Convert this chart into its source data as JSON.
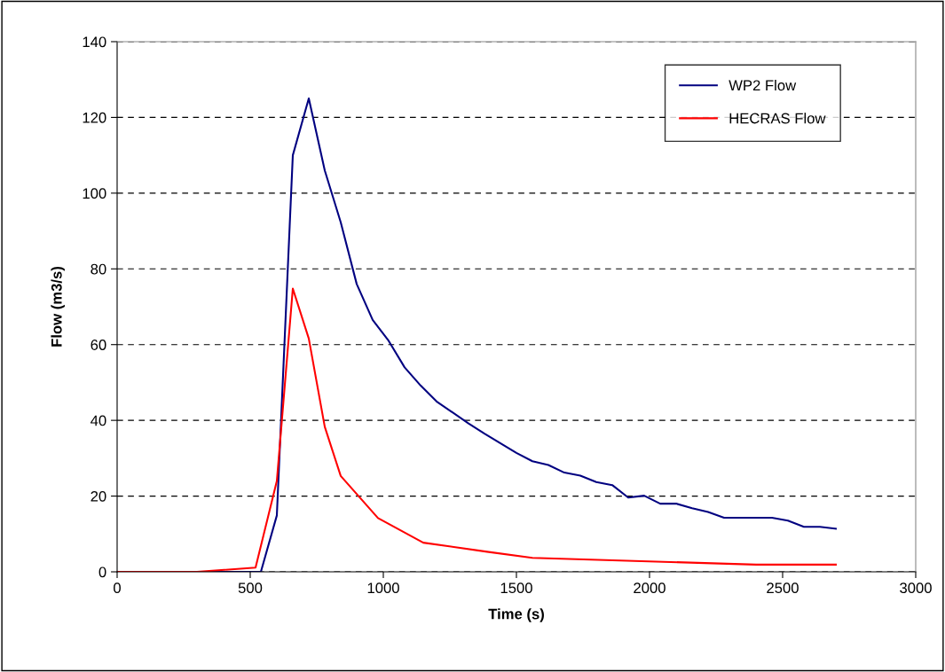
{
  "chart_data": {
    "type": "line",
    "xlabel": "Time (s)",
    "ylabel": "Flow (m3/s)",
    "xlim": [
      0,
      3000
    ],
    "xticks": [
      0,
      500,
      1000,
      1500,
      2000,
      2500,
      3000
    ],
    "ylim": [
      0,
      140
    ],
    "yticks": [
      0,
      20,
      40,
      60,
      80,
      100,
      120,
      140
    ],
    "grid": "y",
    "legend": "top right",
    "marker": "none",
    "line_style": "solid",
    "series": [
      {
        "name": "WP2 Flow",
        "color": "#000080",
        "x": [
          0,
          540,
          600,
          660,
          720,
          780,
          840,
          900,
          960,
          1020,
          1080,
          1140,
          1200,
          1320,
          1380,
          1500,
          1560,
          1620,
          1680,
          1740,
          1800,
          1860,
          1920,
          1980,
          2040,
          2100,
          2160,
          2220,
          2280,
          2460,
          2520,
          2580,
          2640,
          2700
        ],
        "values": [
          0,
          0,
          14.9,
          110,
          125,
          106,
          92.3,
          76,
          66.5,
          61,
          54,
          49.2,
          45,
          39.2,
          36.5,
          31.4,
          29.2,
          28.2,
          26.2,
          25.4,
          23.7,
          22.9,
          19.6,
          20.1,
          18,
          18,
          16.8,
          15.8,
          14.3,
          14.3,
          13.5,
          11.9,
          11.9,
          11.4
        ]
      },
      {
        "name": "HECRAS Flow",
        "color": "#ff0000",
        "x": [
          0,
          300,
          520,
          600,
          660,
          720,
          780,
          840,
          980,
          1150,
          1390,
          1560,
          2400,
          2700
        ],
        "values": [
          0,
          0,
          1.1,
          24,
          74.8,
          61.6,
          38.3,
          25.3,
          14.2,
          7.7,
          5.3,
          3.7,
          1.9,
          1.9
        ]
      }
    ]
  }
}
